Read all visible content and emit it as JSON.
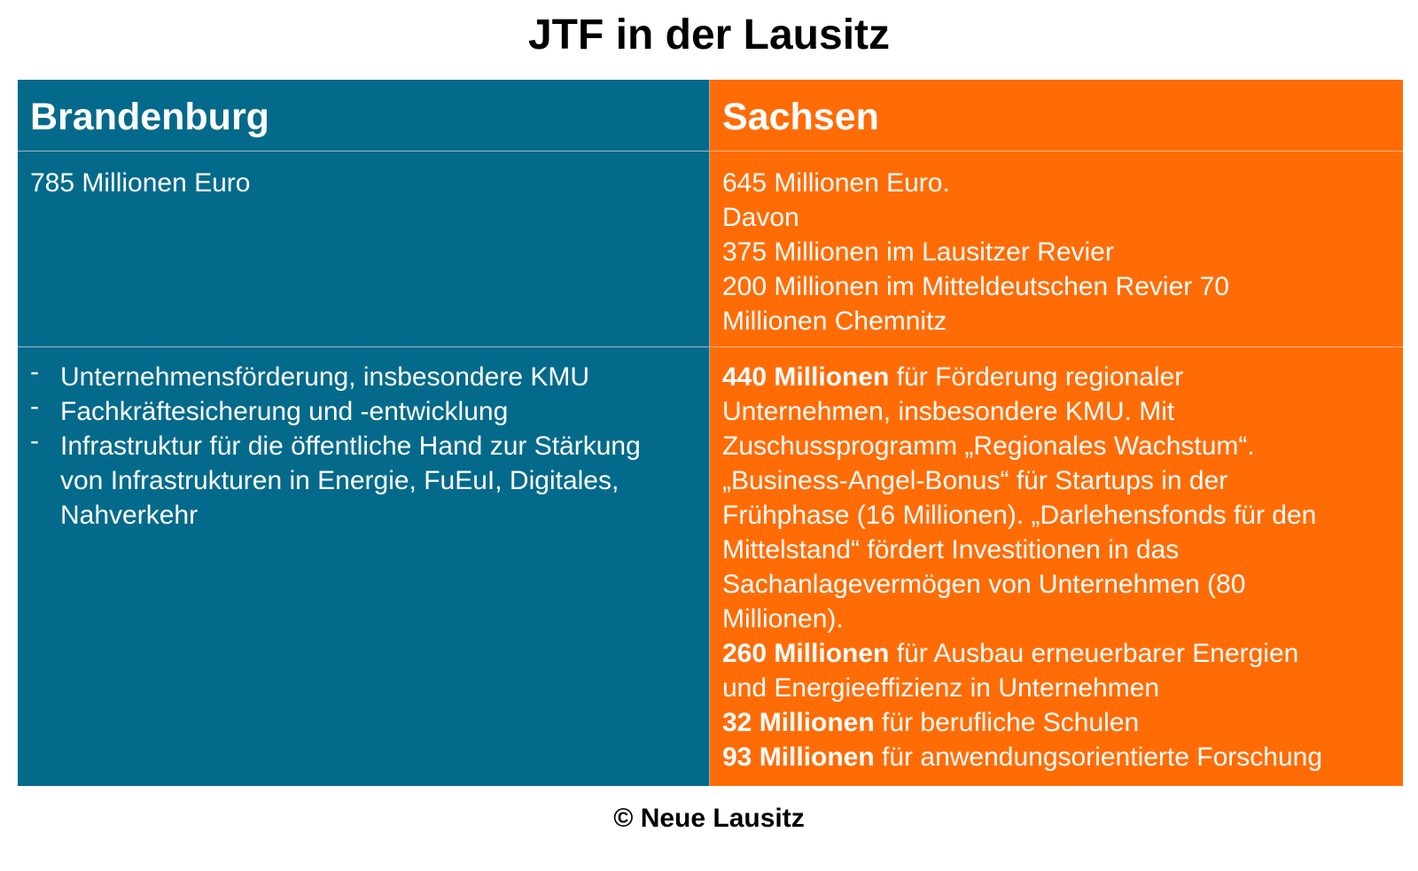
{
  "title": "JTF in der Lausitz",
  "columns": {
    "brandenburg": {
      "header": "Brandenburg",
      "amount_lines": [
        "785 Millionen Euro"
      ],
      "bullets": [
        [
          "Unternehmensförderung, insbesondere KMU"
        ],
        [
          "Fachkräftesicherung und -entwicklung"
        ],
        [
          "Infrastruktur für die öffentliche Hand zur Stärkung",
          "von Infrastrukturen in Energie, FuEuI, Digitales,",
          "Nahverkehr"
        ]
      ],
      "bullet_marker": "-"
    },
    "sachsen": {
      "header": "Sachsen",
      "amount_lines": [
        "645 Millionen Euro.",
        "Davon",
        "375 Millionen im Lausitzer Revier",
        "200 Millionen im Mitteldeutschen Revier 70",
        "Millionen Chemnitz"
      ],
      "details": [
        {
          "bold": "440 Millionen",
          "text": " für Förderung regionaler"
        },
        {
          "bold": "",
          "text": "Unternehmen, insbesondere KMU. Mit"
        },
        {
          "bold": "",
          "text": "Zuschussprogramm „Regionales Wachstum“."
        },
        {
          "bold": "",
          "text": "„Business-Angel-Bonus“ für Startups in der"
        },
        {
          "bold": "",
          "text": "Frühphase (16 Millionen). „Darlehensfonds für den"
        },
        {
          "bold": "",
          "text": "Mittelstand“ fördert Investitionen in das"
        },
        {
          "bold": "",
          "text": "Sachanlagevermögen von Unternehmen (80"
        },
        {
          "bold": "",
          "text": "Millionen)."
        },
        {
          "bold": "260 Millionen",
          "text": " für Ausbau erneuerbarer Energien"
        },
        {
          "bold": "",
          "text": "und Energieeffizienz in Unternehmen"
        },
        {
          "bold": "32 Millionen",
          "text": " für berufliche Schulen"
        },
        {
          "bold": "93 Millionen",
          "text": " für anwendungsorientierte Forschung"
        }
      ]
    }
  },
  "footer": "© Neue Lausitz",
  "colors": {
    "brandenburg_bg": "#046a8b",
    "sachsen_bg": "#ff6c06",
    "text_on_color": "#ffffff"
  }
}
